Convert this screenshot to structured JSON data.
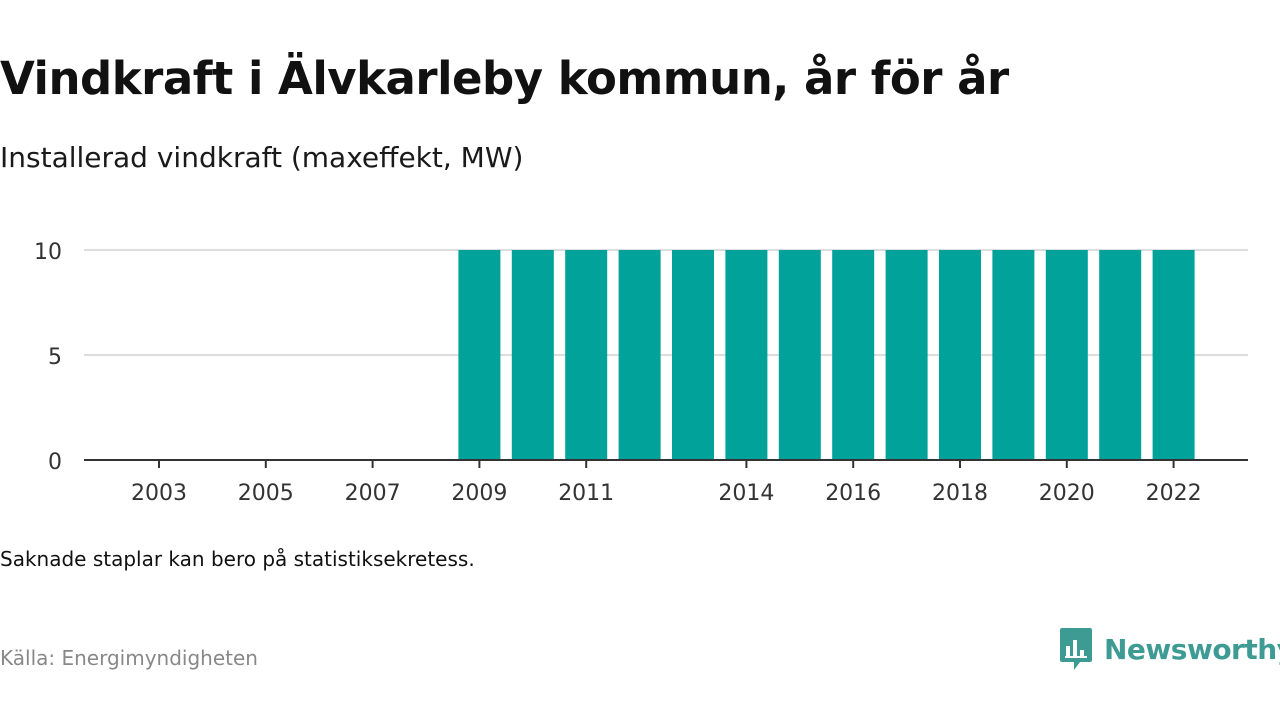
{
  "header": {
    "title": "Vindkraft i Älvkarleby kommun, år för år",
    "subtitle": "Installerad vindkraft (maxeffekt, MW)"
  },
  "footer": {
    "note": "Saknade staplar kan bero på statistiksekretess.",
    "source": "Källa: Energimyndigheten",
    "brand": "Newsworthy",
    "brand_icon": "newsworthy-logo-icon"
  },
  "colors": {
    "bar": "#00a29a",
    "grid": "#dddddd",
    "axis": "#333333",
    "brand": "#3e9b94"
  },
  "chart_data": {
    "type": "bar",
    "categories": [
      "2003",
      "2004",
      "2005",
      "2006",
      "2007",
      "2008",
      "2009",
      "2010",
      "2011",
      "2012",
      "2013",
      "2014",
      "2015",
      "2016",
      "2017",
      "2018",
      "2019",
      "2020",
      "2021",
      "2022"
    ],
    "values": [
      null,
      null,
      null,
      null,
      null,
      null,
      10,
      10,
      10,
      10,
      10,
      10,
      10,
      10,
      10,
      10,
      10,
      10,
      10,
      10
    ],
    "x_tick_labels": [
      "2003",
      "2005",
      "2007",
      "2009",
      "2011",
      "2014",
      "2016",
      "2018",
      "2020",
      "2022"
    ],
    "y_ticks": [
      0,
      5,
      10
    ],
    "ylim": [
      0,
      10
    ],
    "grid": true
  }
}
